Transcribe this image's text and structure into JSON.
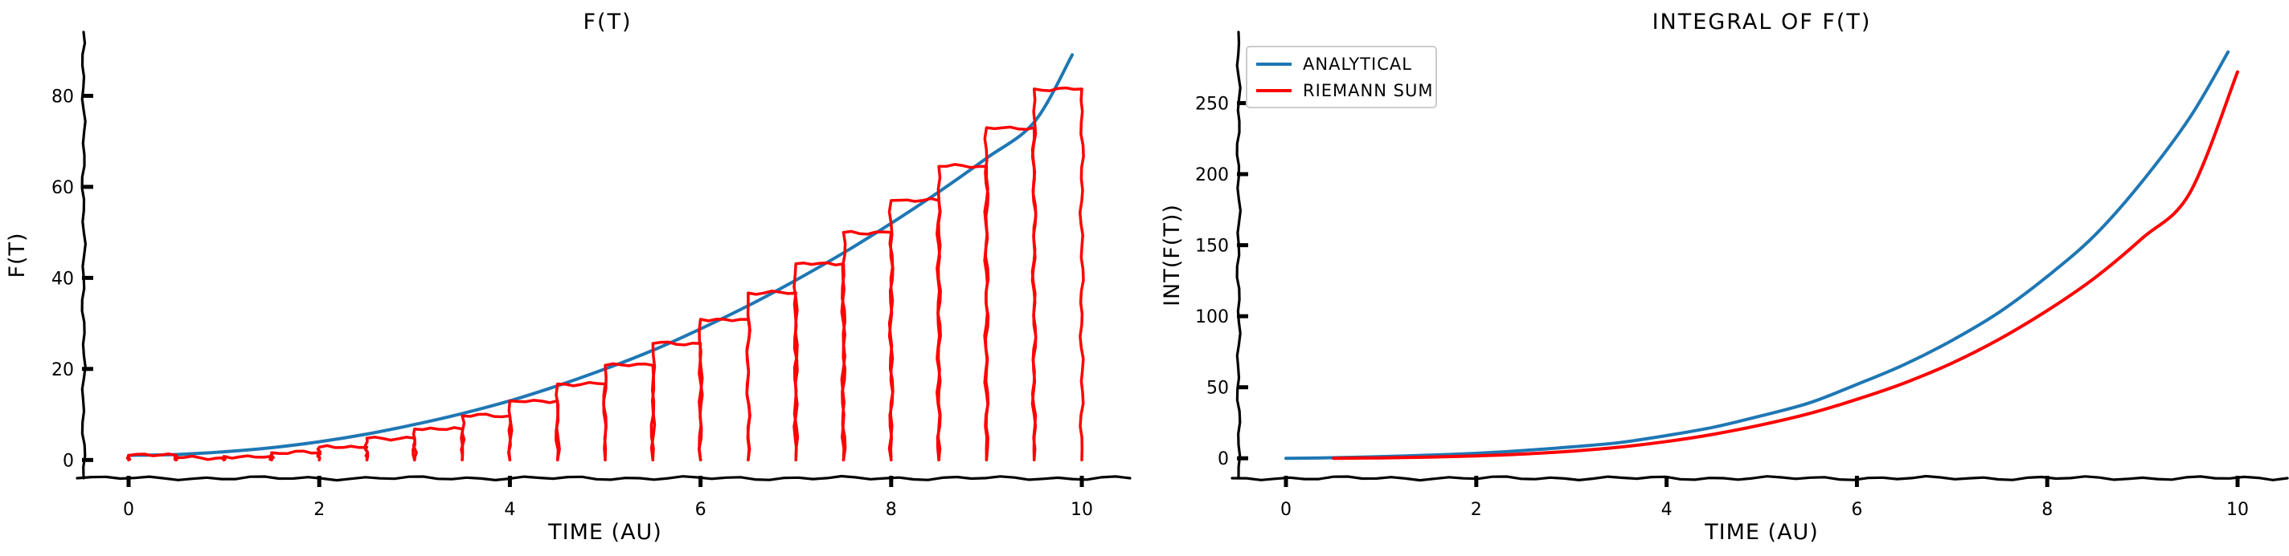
{
  "chart_data": [
    {
      "type": "bar",
      "title": "F(T)",
      "xlabel": "TIME (AU)",
      "ylabel": "F(T)",
      "xlim": [
        -0.5,
        10.5
      ],
      "ylim": [
        -4,
        94
      ],
      "xticks": [
        "0",
        "2",
        "4",
        "6",
        "8",
        "10"
      ],
      "yticks": [
        "0",
        "20",
        "40",
        "60",
        "80"
      ],
      "grid": false,
      "series": [
        {
          "kind": "line",
          "color": "#1f77b4",
          "x": [
            0,
            0.5,
            1,
            1.5,
            2,
            2.5,
            3,
            3.5,
            4,
            4.5,
            5,
            5.5,
            6,
            6.5,
            7,
            7.5,
            8,
            8.5,
            9,
            9.5,
            9.9
          ],
          "y": [
            1,
            1.2,
            1.8,
            2.7,
            4,
            5.7,
            7.8,
            10.2,
            13,
            16.3,
            20,
            24.1,
            28.8,
            33.9,
            39.5,
            45.5,
            52,
            58.9,
            66.3,
            74.2,
            89
          ]
        },
        {
          "kind": "step-bars",
          "color": "#ff0000",
          "width": 0.5,
          "x": [
            0,
            0.5,
            1,
            1.5,
            2,
            2.5,
            3,
            3.5,
            4,
            4.5,
            5,
            5.5,
            6,
            6.5,
            7,
            7.5,
            8,
            8.5,
            9,
            9.5
          ],
          "values": [
            1,
            0.5,
            0.8,
            1.6,
            2.8,
            4.8,
            6.8,
            9.7,
            13,
            16.7,
            20.8,
            25.6,
            30.9,
            36.7,
            43.1,
            50,
            57,
            64.5,
            73,
            81.5
          ]
        }
      ]
    },
    {
      "type": "line",
      "title": "INTEGRAL OF F(T)",
      "xlabel": "TIME (AU)",
      "ylabel": "INT(F(T))",
      "xlim": [
        -0.5,
        10.5
      ],
      "ylim": [
        -14,
        300
      ],
      "xticks": [
        "0",
        "2",
        "4",
        "6",
        "8",
        "10"
      ],
      "yticks": [
        "0",
        "50",
        "100",
        "150",
        "200",
        "250"
      ],
      "grid": false,
      "legend": "top-left",
      "series": [
        {
          "name": "ANALYTICAL",
          "color": "#1f77b4",
          "x": [
            0,
            0.5,
            1,
            1.5,
            2,
            2.5,
            3,
            3.5,
            4,
            4.5,
            5,
            5.5,
            6,
            6.5,
            7,
            7.5,
            8,
            8.5,
            9,
            9.5,
            9.9
          ],
          "y": [
            0,
            0.4,
            1.2,
            2.2,
            3.5,
            5.5,
            8,
            11,
            16,
            22,
            30,
            39,
            52,
            66,
            83,
            103,
            128,
            157,
            195,
            240,
            286
          ]
        },
        {
          "name": "RIEMANN SUM",
          "color": "#ff0000",
          "x": [
            0.5,
            1,
            1.5,
            2,
            2.5,
            3,
            3.5,
            4,
            4.5,
            5,
            5.5,
            6,
            6.5,
            7,
            7.5,
            8,
            8.5,
            9,
            9.5,
            10
          ],
          "y": [
            0,
            0.3,
            0.8,
            1.7,
            3,
            5,
            7.8,
            11.8,
            17,
            23.6,
            31.5,
            41.5,
            53,
            67,
            84,
            104,
            127,
            155,
            187,
            272
          ]
        }
      ]
    }
  ]
}
